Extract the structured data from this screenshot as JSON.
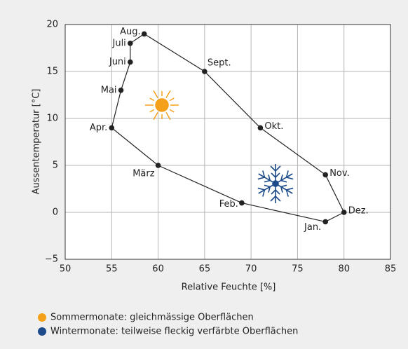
{
  "chart_data": {
    "type": "line",
    "xlabel": "Relative Feuchte [%]",
    "ylabel": "Aussentemperatur [°C]",
    "categories": [
      "Jan.",
      "Feb.",
      "März",
      "Apr.",
      "Mai",
      "Juni",
      "Juli",
      "Aug.",
      "Sept.",
      "Okt.",
      "Nov.",
      "Dez."
    ],
    "x": [
      78,
      69,
      60,
      55,
      56,
      57,
      57,
      58.5,
      65,
      71,
      78,
      80
    ],
    "values": [
      -1,
      1,
      5,
      9,
      13,
      16,
      18,
      19,
      15,
      9,
      4,
      0
    ],
    "color": "#222222",
    "closed": true,
    "xlim": [
      50,
      85
    ],
    "xticks": [
      50,
      55,
      60,
      65,
      70,
      75,
      80,
      85
    ],
    "ylim": [
      -5,
      20
    ],
    "yticks": [
      {
        "value": -5,
        "label": "−5"
      },
      0,
      5,
      10,
      15,
      20
    ],
    "grid": true,
    "legend": [
      {
        "label": "Sommermonate: gleichmässige Oberflächen",
        "color": "#f5a01a"
      },
      {
        "label": "Wintermonate: teilweise fleckig verfärbte Oberflächen",
        "color": "#1c4a8a"
      }
    ]
  }
}
